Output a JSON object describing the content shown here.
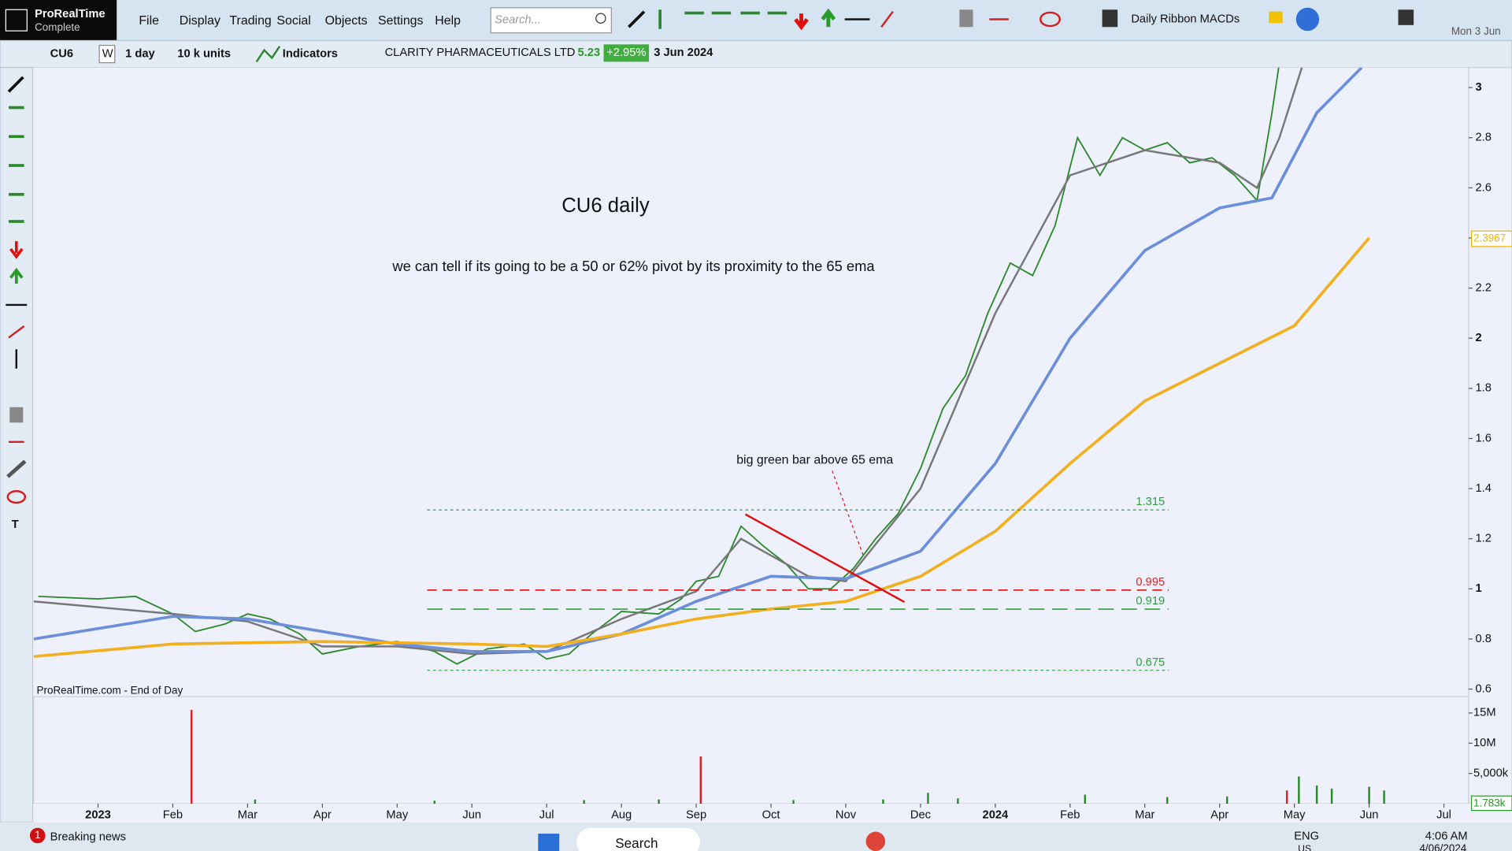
{
  "app": {
    "name": "ProRealTime",
    "edition": "Complete"
  },
  "menu": [
    "File",
    "Display",
    "Trading",
    "Social",
    "Objects",
    "Settings",
    "Help"
  ],
  "search_placeholder": "Search...",
  "layout_name": "Daily Ribbon MACDs",
  "date": "Mon 3 Jun",
  "instrument": {
    "ticker": "CU6",
    "w": "W",
    "period": "1 day",
    "units": "10 k units",
    "indicators": "Indicators",
    "name": "CLARITY PHARMACEUTICALS LTD",
    "price": "5.23",
    "change": "+2.95%",
    "date": "3 Jun 2024"
  },
  "chart_data": [
    {
      "type": "line",
      "title": "CU6 daily",
      "subtitle": "we can tell if its going to be a 50 or 62% pivot by its proximity to the 65 ema",
      "annotation": "big green bar above 65 ema",
      "source": "ProRealTime.com - End of Day",
      "xlim": [
        -0.86,
        18.33
      ],
      "ylim": [
        0.57,
        3.08
      ],
      "yticks": [
        0.6,
        0.8,
        1,
        1.2,
        1.4,
        1.6,
        1.8,
        2,
        2.2,
        2.4,
        2.6,
        2.8,
        3
      ],
      "grid": false,
      "levels": [
        1.315,
        0.995,
        0.919,
        0.675
      ],
      "level_colors": [
        "#2e9e3e",
        "#e02020",
        "#2e9e3e",
        "#2e9e3e"
      ],
      "axis_marker": 2.3967,
      "axis_marker_color": "#f0b400",
      "series": [
        {
          "color": "#2a8a2a",
          "x": [
            -0.8,
            0,
            0.5,
            1,
            1.3,
            1.7,
            2,
            2.3,
            2.7,
            3,
            3.5,
            4,
            4.5,
            4.8,
            5.2,
            5.7,
            6,
            6.3,
            6.6,
            7,
            7.5,
            7.8,
            8,
            8.3,
            8.6,
            8.9,
            9.2,
            9.5,
            9.8,
            10.1,
            10.4,
            10.7,
            11,
            11.3,
            11.6,
            11.9,
            12.2,
            12.5,
            12.8,
            13.1,
            13.4,
            13.7,
            14,
            14.3,
            14.6,
            14.9,
            15.2,
            15.5,
            15.7,
            15.8
          ],
          "values": [
            0.97,
            0.96,
            0.97,
            0.9,
            0.83,
            0.86,
            0.9,
            0.88,
            0.82,
            0.74,
            0.77,
            0.79,
            0.75,
            0.7,
            0.76,
            0.78,
            0.72,
            0.74,
            0.82,
            0.91,
            0.9,
            0.96,
            1.03,
            1.05,
            1.25,
            1.17,
            1.1,
            1.0,
            1.0,
            1.08,
            1.2,
            1.3,
            1.48,
            1.72,
            1.85,
            2.1,
            2.3,
            2.25,
            2.45,
            2.8,
            2.65,
            2.8,
            2.75,
            2.78,
            2.7,
            2.72,
            2.65,
            2.55,
            2.9,
            3.1
          ]
        },
        {
          "color": "#777777",
          "x": [
            -0.86,
            1,
            2,
            3,
            4,
            5,
            6,
            7,
            8,
            8.6,
            9.5,
            10,
            11,
            12,
            13,
            14,
            15,
            15.5,
            15.8,
            16.1
          ],
          "values": [
            0.95,
            0.9,
            0.87,
            0.77,
            0.77,
            0.74,
            0.75,
            0.88,
            0.99,
            1.2,
            1.05,
            1.03,
            1.4,
            2.1,
            2.65,
            2.75,
            2.7,
            2.6,
            2.8,
            3.08
          ]
        },
        {
          "color": "#6b8fd8",
          "x": [
            -0.86,
            1,
            2,
            3,
            4,
            5,
            6,
            7,
            8,
            9,
            10,
            11,
            12,
            13,
            14,
            15,
            15.7,
            16.3,
            16.9
          ],
          "values": [
            0.8,
            0.89,
            0.88,
            0.83,
            0.78,
            0.75,
            0.75,
            0.82,
            0.95,
            1.05,
            1.04,
            1.15,
            1.5,
            2.0,
            2.35,
            2.52,
            2.56,
            2.9,
            3.08
          ]
        },
        {
          "color": "#f2b01e",
          "x": [
            -0.86,
            1,
            3,
            5,
            6,
            7,
            8,
            9,
            10,
            11,
            12,
            13,
            14,
            15,
            16,
            17
          ],
          "values": [
            0.73,
            0.78,
            0.79,
            0.78,
            0.77,
            0.82,
            0.88,
            0.92,
            0.95,
            1.05,
            1.23,
            1.5,
            1.75,
            1.9,
            2.05,
            2.4
          ]
        }
      ]
    },
    {
      "type": "bar",
      "xlim": [
        -0.86,
        18.33
      ],
      "ylim": [
        0,
        17700000
      ],
      "yticks": [
        {
          "value": 15000000,
          "label": "15M"
        },
        {
          "value": 10000000,
          "label": "10M"
        },
        {
          "value": 5000000,
          "label": "5,000k"
        }
      ],
      "xticks": [
        {
          "value": 0,
          "label": "2023"
        },
        {
          "value": 1,
          "label": "Feb"
        },
        {
          "value": 2,
          "label": "Mar"
        },
        {
          "value": 3,
          "label": "Apr"
        },
        {
          "value": 4,
          "label": "May"
        },
        {
          "value": 5,
          "label": "Jun"
        },
        {
          "value": 6,
          "label": "Jul"
        },
        {
          "value": 7,
          "label": "Aug"
        },
        {
          "value": 8,
          "label": "Sep"
        },
        {
          "value": 9,
          "label": "Oct"
        },
        {
          "value": 10,
          "label": "Nov"
        },
        {
          "value": 11,
          "label": "Dec"
        },
        {
          "value": 12,
          "label": "2024"
        },
        {
          "value": 13,
          "label": "Feb"
        },
        {
          "value": 14,
          "label": "Mar"
        },
        {
          "value": 15,
          "label": "Apr"
        },
        {
          "value": 16,
          "label": "May"
        },
        {
          "value": 17,
          "label": "Jun"
        },
        {
          "value": 18,
          "label": "Jul"
        }
      ],
      "axis_marker": {
        "value": 1783,
        "label": "1.783k"
      },
      "x": [
        1.25,
        2.1,
        4.5,
        6.5,
        7.5,
        8.06,
        9.3,
        10.5,
        11.1,
        11.5,
        13.2,
        14.3,
        15.1,
        15.9,
        16.06,
        16.3,
        16.5,
        17.0,
        17.2
      ],
      "values": [
        15500000,
        700000,
        500000,
        600000,
        700000,
        7800000,
        600000,
        700000,
        1800000,
        900000,
        1500000,
        1100000,
        1200000,
        2200000,
        4500000,
        3000000,
        2500000,
        2800000,
        2200000
      ],
      "colors": [
        "#e02020",
        "#2a8a2a",
        "#2a8a2a",
        "#2a8a2a",
        "#2a8a2a",
        "#e02020",
        "#2a8a2a",
        "#2a8a2a",
        "#2a8a2a",
        "#2a8a2a",
        "#2a8a2a",
        "#2a8a2a",
        "#2a8a2a",
        "#e02020",
        "#2a8a2a",
        "#2a8a2a",
        "#2a8a2a",
        "#2a8a2a",
        "#2a8a2a"
      ]
    }
  ],
  "taskbar": {
    "news_count": "1",
    "news": "Breaking news",
    "search": "Search",
    "lang": "ENG",
    "region": "US",
    "time": "4:06 AM",
    "date": "4/06/2024"
  }
}
